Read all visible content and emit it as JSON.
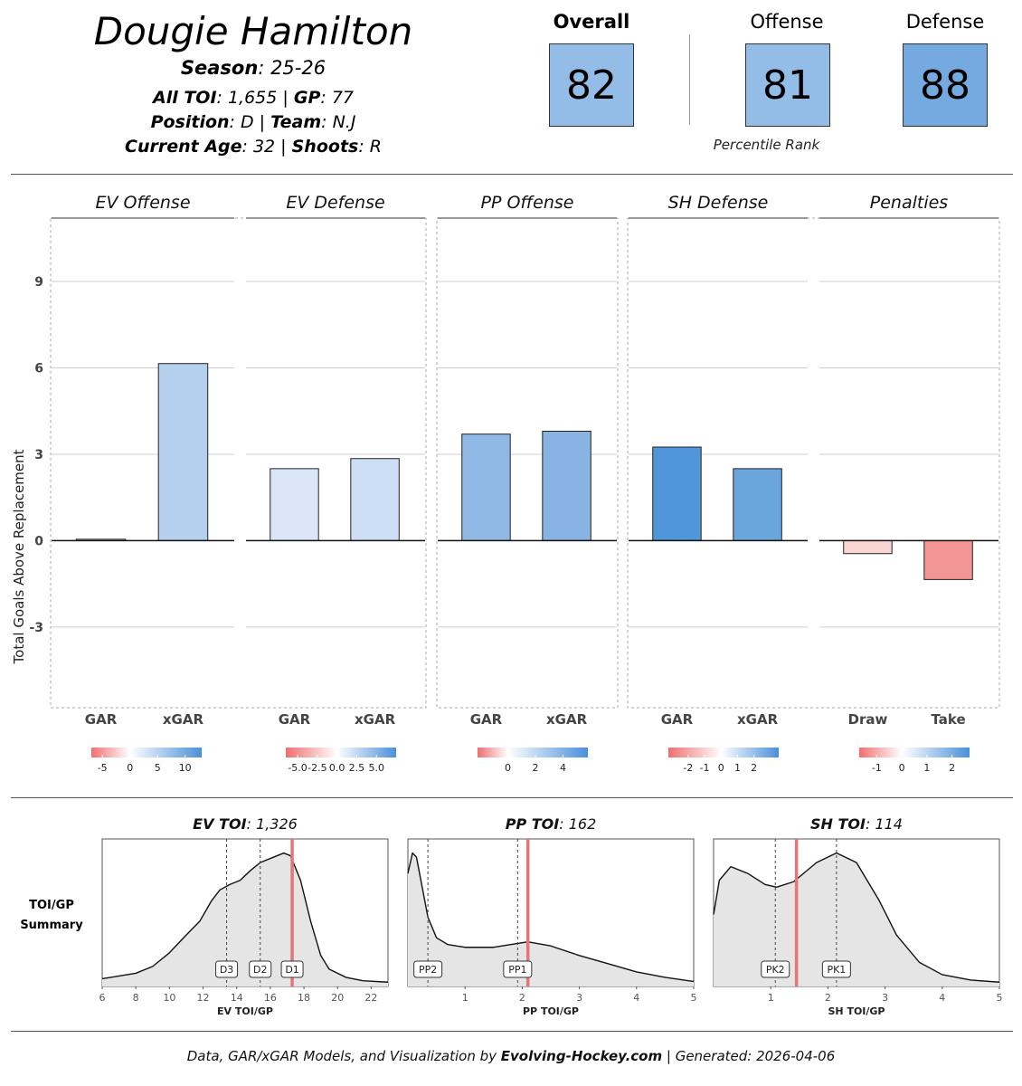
{
  "header": {
    "player_name": "Dougie Hamilton",
    "season_label": "Season",
    "season_value": ": 25-26",
    "toi_label": "All TOI",
    "toi_value": ": 1,655 | ",
    "gp_label": "GP",
    "gp_value": ": 77",
    "position_label": "Position",
    "position_value": ": D | ",
    "team_label": "Team",
    "team_value": ": N.J",
    "age_label": "Current Age",
    "age_value": ": 32 | ",
    "shoots_label": "Shoots",
    "shoots_value": ": R"
  },
  "ratings": {
    "overall_label": "Overall",
    "overall_value": "82",
    "offense_label": "Offense",
    "offense_value": "81",
    "defense_label": "Defense",
    "defense_value": "88",
    "caption": "Percentile Rank",
    "colors": {
      "overall": "#93bce6",
      "offense": "#93bce6",
      "defense": "#74aadf",
      "border": "#333333"
    }
  },
  "chart_data": [
    {
      "type": "bar",
      "title": "",
      "ylabel": "Total Goals Above Replacement",
      "ylim": [
        -5.8,
        11.2
      ],
      "yticks": [
        -3,
        0,
        3,
        6,
        9
      ],
      "grid": true,
      "facets": [
        {
          "name": "EV Offense",
          "categories": [
            "GAR",
            "xGAR"
          ],
          "values": [
            0.05,
            6.15
          ],
          "colors": [
            "#ffffff",
            "#b5cfef"
          ],
          "colorbar": {
            "ticks": [
              "-5",
              "0",
              "5",
              "10"
            ],
            "min": -7,
            "max": 13,
            "values": [
              -5,
              0,
              5,
              10
            ]
          }
        },
        {
          "name": "EV Defense",
          "categories": [
            "GAR",
            "xGAR"
          ],
          "values": [
            2.5,
            2.85
          ],
          "colors": [
            "#dae6f7",
            "#cddff4"
          ],
          "colorbar": {
            "ticks": [
              "-5.0",
              "-2.5",
              "0.0",
              "2.5",
              "5.0"
            ],
            "min": -6.5,
            "max": 7.5,
            "values": [
              -5,
              -2.5,
              0,
              2.5,
              5
            ]
          }
        },
        {
          "name": "PP Offense",
          "categories": [
            "GAR",
            "xGAR"
          ],
          "values": [
            3.7,
            3.8
          ],
          "colors": [
            "#8fb8e5",
            "#88b3e3"
          ],
          "colorbar": {
            "ticks": [
              "0",
              "2",
              "4"
            ],
            "min": -2.2,
            "max": 5.8,
            "values": [
              0,
              2,
              4
            ]
          }
        },
        {
          "name": "SH Defense",
          "categories": [
            "GAR",
            "xGAR"
          ],
          "values": [
            3.25,
            2.5
          ],
          "colors": [
            "#4f97d8",
            "#6aa5dc"
          ],
          "colorbar": {
            "ticks": [
              "-2",
              "-1",
              "0",
              "1",
              "2"
            ],
            "min": -3.2,
            "max": 3.5,
            "values": [
              -2,
              -1,
              0,
              1,
              2
            ]
          }
        },
        {
          "name": "Penalties",
          "categories": [
            "Draw",
            "Take"
          ],
          "values": [
            -0.45,
            -1.35
          ],
          "colors": [
            "#fbd4d4",
            "#f39595"
          ],
          "colorbar": {
            "ticks": [
              "-1",
              "0",
              "1",
              "2"
            ],
            "min": -1.7,
            "max": 2.7,
            "values": [
              -1,
              0,
              1,
              2
            ]
          }
        }
      ]
    },
    {
      "type": "area",
      "title": "EV TOI: 1,326",
      "title_bold": "EV TOI",
      "title_rest": ": 1,326",
      "xlabel": "EV TOI/GP",
      "xlim": [
        6,
        23
      ],
      "xticks": [
        6,
        8,
        10,
        12,
        14,
        16,
        18,
        20,
        22
      ],
      "player_value": 17.3,
      "markers": [
        {
          "label": "D3",
          "x": 13.4
        },
        {
          "label": "D2",
          "x": 15.4
        },
        {
          "label": "D1",
          "x": 17.3
        }
      ],
      "density": [
        [
          6,
          0.03
        ],
        [
          7,
          0.05
        ],
        [
          8,
          0.07
        ],
        [
          9,
          0.12
        ],
        [
          10,
          0.22
        ],
        [
          11,
          0.35
        ],
        [
          11.8,
          0.45
        ],
        [
          12.5,
          0.6
        ],
        [
          13,
          0.68
        ],
        [
          13.6,
          0.72
        ],
        [
          14.2,
          0.75
        ],
        [
          14.8,
          0.82
        ],
        [
          15.4,
          0.88
        ],
        [
          16.2,
          0.92
        ],
        [
          16.8,
          0.95
        ],
        [
          17.2,
          0.93
        ],
        [
          17.8,
          0.75
        ],
        [
          18.4,
          0.45
        ],
        [
          19,
          0.2
        ],
        [
          19.5,
          0.1
        ],
        [
          20.5,
          0.04
        ],
        [
          21.5,
          0.015
        ],
        [
          23,
          0.005
        ]
      ]
    },
    {
      "type": "area",
      "title": "PP TOI: 162",
      "title_bold": "PP TOI",
      "title_rest": ": 162",
      "xlabel": "PP TOI/GP",
      "xlim": [
        0,
        5
      ],
      "xticks": [
        1,
        2,
        3,
        4,
        5
      ],
      "player_value": 2.1,
      "markers": [
        {
          "label": "PP2",
          "x": 0.35
        },
        {
          "label": "PP1",
          "x": 1.92
        }
      ],
      "density": [
        [
          0,
          0.8
        ],
        [
          0.08,
          0.95
        ],
        [
          0.15,
          0.92
        ],
        [
          0.25,
          0.7
        ],
        [
          0.35,
          0.48
        ],
        [
          0.5,
          0.33
        ],
        [
          0.7,
          0.28
        ],
        [
          1,
          0.26
        ],
        [
          1.5,
          0.26
        ],
        [
          1.8,
          0.28
        ],
        [
          2.1,
          0.3
        ],
        [
          2.5,
          0.27
        ],
        [
          3,
          0.2
        ],
        [
          3.5,
          0.14
        ],
        [
          4,
          0.08
        ],
        [
          4.5,
          0.04
        ],
        [
          5,
          0.01
        ]
      ]
    },
    {
      "type": "area",
      "title": "SH TOI: 114",
      "title_bold": "SH TOI",
      "title_rest": ": 114",
      "xlabel": "SH TOI/GP",
      "xlim": [
        0,
        5
      ],
      "xticks": [
        1,
        2,
        3,
        4,
        5
      ],
      "player_value": 1.45,
      "markers": [
        {
          "label": "PK2",
          "x": 1.08
        },
        {
          "label": "PK1",
          "x": 2.15
        }
      ],
      "density": [
        [
          0,
          0.5
        ],
        [
          0.1,
          0.75
        ],
        [
          0.3,
          0.85
        ],
        [
          0.6,
          0.8
        ],
        [
          0.9,
          0.72
        ],
        [
          1.1,
          0.7
        ],
        [
          1.4,
          0.74
        ],
        [
          1.8,
          0.88
        ],
        [
          2.15,
          0.95
        ],
        [
          2.5,
          0.88
        ],
        [
          2.9,
          0.6
        ],
        [
          3.2,
          0.35
        ],
        [
          3.6,
          0.15
        ],
        [
          4,
          0.06
        ],
        [
          4.5,
          0.02
        ],
        [
          5,
          0.005
        ]
      ]
    }
  ],
  "toi_summary_label": "TOI/GP\nSummary",
  "toi_summary_line1": "TOI/GP",
  "toi_summary_line2": "Summary",
  "footer": {
    "prefix": "Data, GAR/xGAR Models, and Visualization by ",
    "brand": "Evolving-Hockey.com",
    "suffix": " | Generated: 2026-04-06"
  }
}
